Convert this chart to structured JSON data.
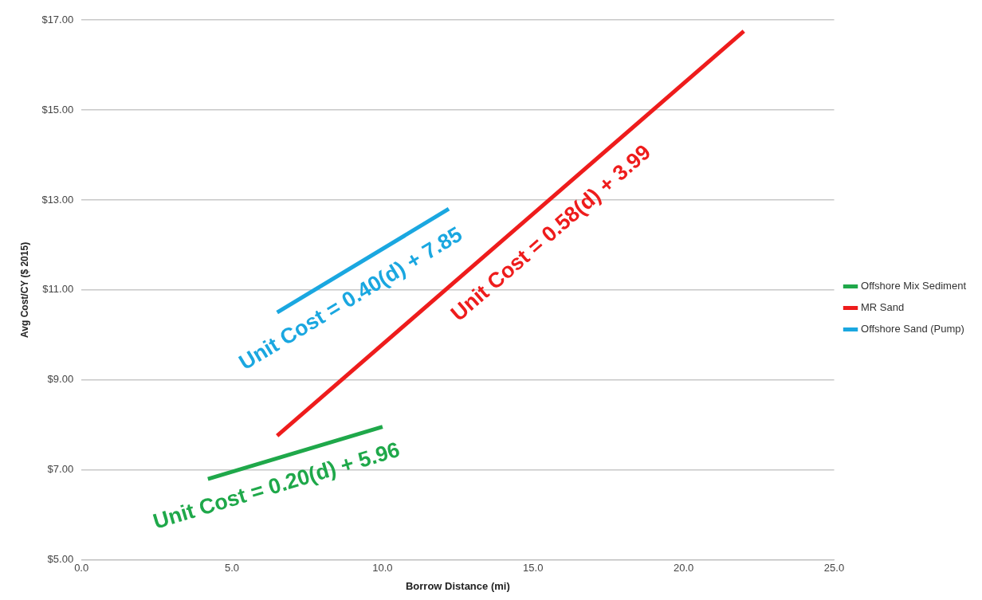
{
  "chart_data": {
    "type": "line",
    "xlabel": "Borrow Distance (mi)",
    "ylabel": "Avg Cost/CY ($ 2015)",
    "xlim": [
      0,
      25
    ],
    "xticks": [
      {
        "value": 0,
        "label": "0.0"
      },
      {
        "value": 5,
        "label": "5.0"
      },
      {
        "value": 10,
        "label": "10.0"
      },
      {
        "value": 15,
        "label": "15.0"
      },
      {
        "value": 20,
        "label": "20.0"
      },
      {
        "value": 25,
        "label": "25.0"
      }
    ],
    "ylim": [
      5,
      17
    ],
    "yticks": [
      {
        "value": 5,
        "label": "$5.00"
      },
      {
        "value": 7,
        "label": "$7.00"
      },
      {
        "value": 9,
        "label": "$9.00"
      },
      {
        "value": 11,
        "label": "$11.00"
      },
      {
        "value": 13,
        "label": "$13.00"
      },
      {
        "value": 15,
        "label": "$15.00"
      },
      {
        "value": 17,
        "label": "$17.00"
      }
    ],
    "grid": "y",
    "legend": "right",
    "marker": "none",
    "line_style": "solid",
    "series": [
      {
        "name": "Offshore Mix Sediment",
        "color": "#1fa84a",
        "x": [
          4.2,
          10.0
        ],
        "values": [
          6.8,
          7.96
        ]
      },
      {
        "name": "MR Sand",
        "color": "#ee1c1c",
        "x": [
          6.5,
          22.0
        ],
        "values": [
          7.76,
          16.75
        ]
      },
      {
        "name": "Offshore Sand (Pump)",
        "color": "#1aa7e0",
        "x": [
          6.5,
          12.2
        ],
        "values": [
          10.5,
          12.8
        ]
      }
    ],
    "annotations": [
      "Unit Cost = 0.20(d) + 5.96",
      "Unit Cost = 0.58(d) + 3.99",
      "Unit Cost = 0.40(d) + 7.85"
    ]
  }
}
